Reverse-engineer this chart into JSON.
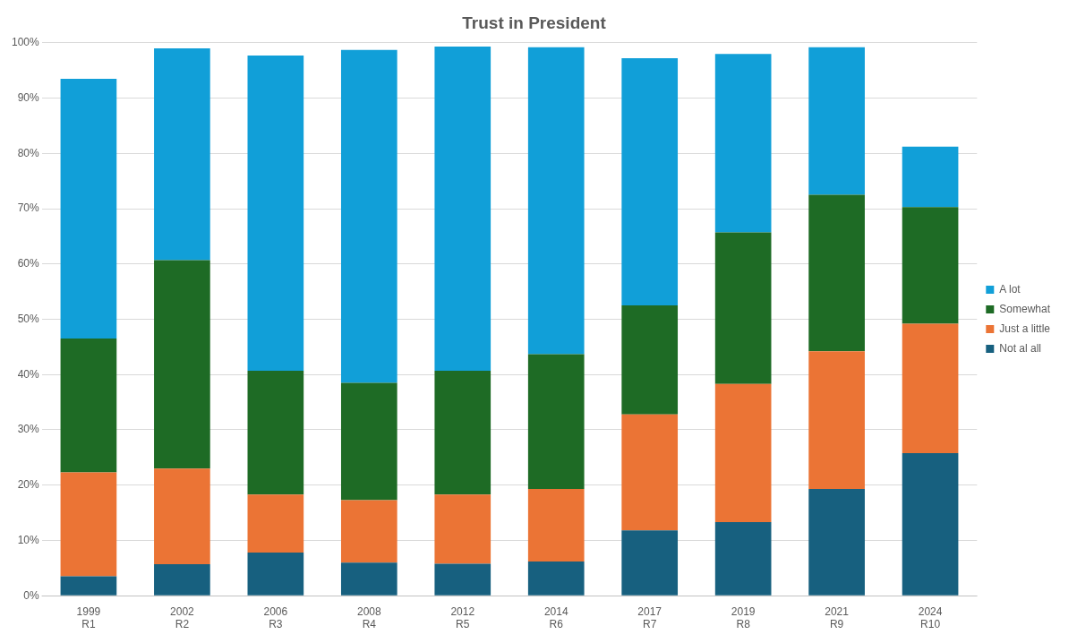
{
  "chart_data": {
    "type": "bar",
    "title": "Trust in President",
    "stacked": true,
    "categories": [
      "1999\nR1",
      "2002\nR2",
      "2006\nR3",
      "2008\nR4",
      "2012\nR5",
      "2014\nR6",
      "2017\nR7",
      "2019\nR8",
      "2021\nR9",
      "2024\nR10"
    ],
    "series": [
      {
        "name": "Not al all",
        "color": "#17607f",
        "values": [
          3.5,
          5.7,
          7.8,
          6,
          5.8,
          6.2,
          11.8,
          13.3,
          19.3,
          25.8
        ]
      },
      {
        "name": "Just a little",
        "color": "#eb7435",
        "values": [
          18.8,
          17.3,
          10.5,
          11.3,
          12.5,
          13.1,
          21.0,
          25.0,
          24.9,
          23.4
        ]
      },
      {
        "name": "Somewhat",
        "color": "#1e6b25",
        "values": [
          24.2,
          37.7,
          22.4,
          21.2,
          22.4,
          24.4,
          19.7,
          27.4,
          28.3,
          21.1
        ]
      },
      {
        "name": "A lot",
        "color": "#119fd8",
        "values": [
          47.0,
          38.3,
          57.0,
          60.2,
          58.6,
          55.5,
          44.7,
          32.3,
          26.7,
          10.9
        ]
      }
    ],
    "ylim": [
      0,
      100
    ],
    "yticks": [
      {
        "value": 0,
        "label": "0%"
      },
      {
        "value": 10,
        "label": "10%"
      },
      {
        "value": 20,
        "label": "20%"
      },
      {
        "value": 30,
        "label": "30%"
      },
      {
        "value": 40,
        "label": "40%"
      },
      {
        "value": 50,
        "label": "50%"
      },
      {
        "value": 60,
        "label": "60%"
      },
      {
        "value": 70,
        "label": "70%"
      },
      {
        "value": 80,
        "label": "80%"
      },
      {
        "value": 90,
        "label": "90%"
      },
      {
        "value": 100,
        "label": "100%"
      }
    ],
    "grid": "y",
    "legend": "right"
  }
}
